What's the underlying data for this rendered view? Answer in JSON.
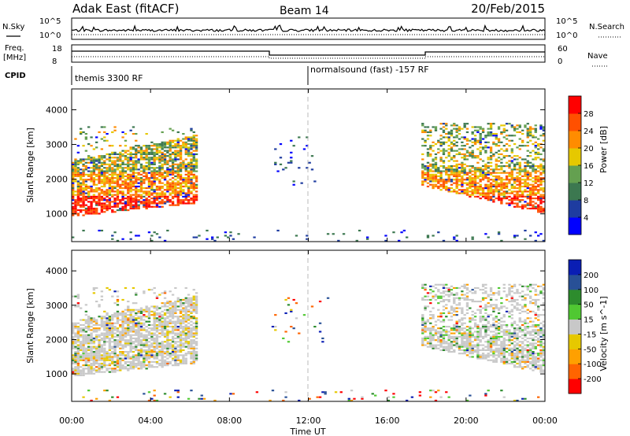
{
  "header": {
    "station": "Adak East (fitACF)",
    "beam": "Beam 14",
    "date": "20/Feb/2015"
  },
  "panels": {
    "nsky_label": "N.Sky",
    "nsearch_label": "N.Search",
    "nsky_ticks": [
      "10^5",
      "10^0"
    ],
    "nsearch_ticks": [
      "10^5",
      "10^0"
    ],
    "freq_label_1": "Freq.",
    "freq_label_2": "[MHz]",
    "freq_ticks": [
      "18",
      "8"
    ],
    "nave_label": "Nave",
    "nave_ticks": [
      "60",
      "0"
    ],
    "cpid_label": "CPID",
    "cpid_segments": [
      {
        "label": "themis 3300 RF",
        "start_hour": 0
      },
      {
        "label": "normalsound (fast) -157 RF",
        "start_hour": 12
      }
    ]
  },
  "time_axis": {
    "label": "Time UT",
    "ticks": [
      "00:00",
      "04:00",
      "08:00",
      "12:00",
      "16:00",
      "20:00",
      "00:00"
    ],
    "range_hours": [
      0,
      24
    ]
  },
  "colors": {
    "power": [
      "#0000ff",
      "#1e3ca0",
      "#3c7850",
      "#64a050",
      "#e6c800",
      "#ff8c00",
      "#ff5000",
      "#ff0000"
    ],
    "velocity": [
      "#ff0000",
      "#ff6400",
      "#ffa000",
      "#e6c800",
      "#c8c8c8",
      "#50c832",
      "#2d8c2d",
      "#285096",
      "#0a1eb4"
    ]
  },
  "chart_data": [
    {
      "type": "heatmap",
      "title": "Power",
      "ylabel": "Slant Range [km]",
      "yticks": [
        "4000",
        "3000",
        "2000",
        "1000"
      ],
      "ylim": [
        200,
        4600
      ],
      "xlim": [
        0,
        24
      ],
      "colorbar_label": "Power [dB]",
      "colorbar_ticks": [
        "28",
        "24",
        "20",
        "16",
        "12",
        "8",
        "4"
      ],
      "colorbar_range": [
        0,
        32
      ]
    },
    {
      "type": "heatmap",
      "title": "Velocity",
      "ylabel": "Slant Range [km]",
      "yticks": [
        "4000",
        "3000",
        "2000",
        "1000"
      ],
      "ylim": [
        200,
        4600
      ],
      "xlim": [
        0,
        24
      ],
      "colorbar_label": "Velocity [m s^-1]",
      "colorbar_ticks": [
        "200",
        "100",
        "50",
        "15",
        "-15",
        "-50",
        "-100",
        "-200"
      ]
    }
  ]
}
